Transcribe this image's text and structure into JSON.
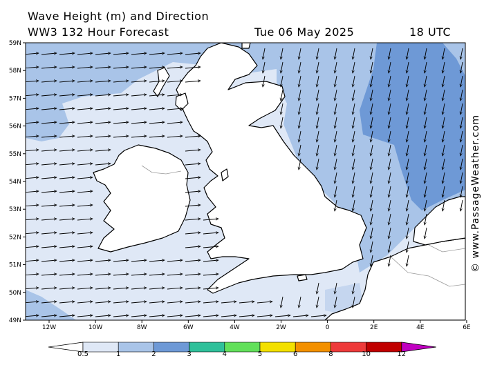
{
  "header": {
    "title": "Wave Height (m) and Direction",
    "model": "WW3 132 Hour Forecast",
    "date": "Tue 06 May 2025",
    "time": "18 UTC"
  },
  "credit": "© www.PassageWeather.com",
  "map": {
    "lat_labels": [
      "59N",
      "58N",
      "57N",
      "56N",
      "55N",
      "54N",
      "53N",
      "52N",
      "51N",
      "50N",
      "49N"
    ],
    "lon_labels": [
      "12W",
      "10W",
      "8W",
      "6W",
      "4W",
      "2W",
      "0",
      "2E",
      "4E",
      "6E"
    ],
    "colors": {
      "land": "#ffffff",
      "coast": "#000000",
      "border": "#aaaaaa",
      "wave_0_5_1": "#dfe8f6",
      "wave_1_2": "#a9c4e8",
      "wave_2_3": "#6e99d6"
    },
    "arrow_direction_west_sea": "east",
    "arrow_direction_north_sea": "south"
  },
  "colorbar": {
    "ticks": [
      "0.5",
      "1",
      "2",
      "3",
      "4",
      "5",
      "6",
      "8",
      "10",
      "12"
    ],
    "colors": [
      "#dfe8f6",
      "#a9c4e8",
      "#6e99d6",
      "#2fc09a",
      "#62e05a",
      "#f3e000",
      "#f39000",
      "#ee3a3a",
      "#c00000",
      "#c000c0"
    ]
  }
}
